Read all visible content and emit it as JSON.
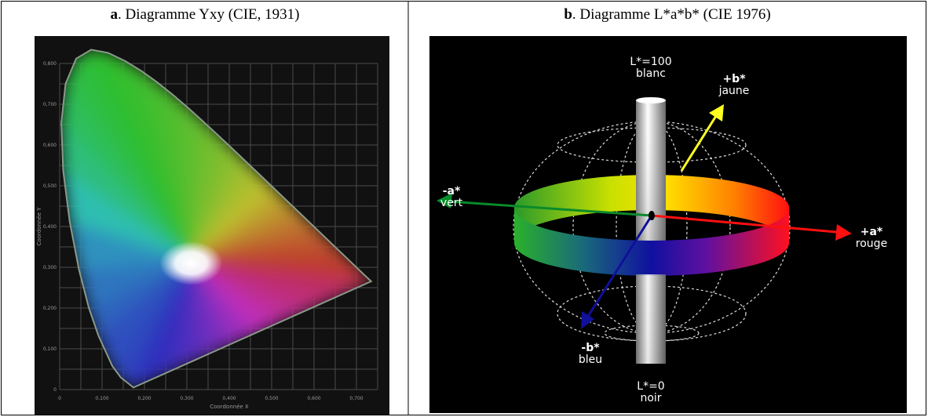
{
  "panels": [
    {
      "label": "a",
      "caption": ". Diagramme Yxy (CIE, 1931)",
      "x_ticks": [
        "0",
        "0,100",
        "0,200",
        "0,300",
        "0,400",
        "0,500",
        "0,600",
        "0,700"
      ],
      "y_ticks": [
        "0",
        "0,100",
        "0,200",
        "0,300",
        "0,400",
        "0,500",
        "0,600",
        "0,700",
        "0,800"
      ],
      "x_axis_title": "Coordonnée X",
      "y_axis_title": "Coordonnée Y"
    },
    {
      "label": "b",
      "caption": ". Diagramme L*a*b* (CIE 1976)",
      "annotations": [
        {
          "lines": [
            "L*=100",
            "blanc"
          ]
        },
        {
          "lines": [
            "+b*",
            "jaune"
          ]
        },
        {
          "lines": [
            "-a*",
            "vert"
          ]
        },
        {
          "lines": [
            "+a*",
            "rouge"
          ]
        },
        {
          "lines": [
            "-b*",
            "bleu"
          ]
        },
        {
          "lines": [
            "L*=0",
            "noir"
          ]
        }
      ]
    }
  ]
}
